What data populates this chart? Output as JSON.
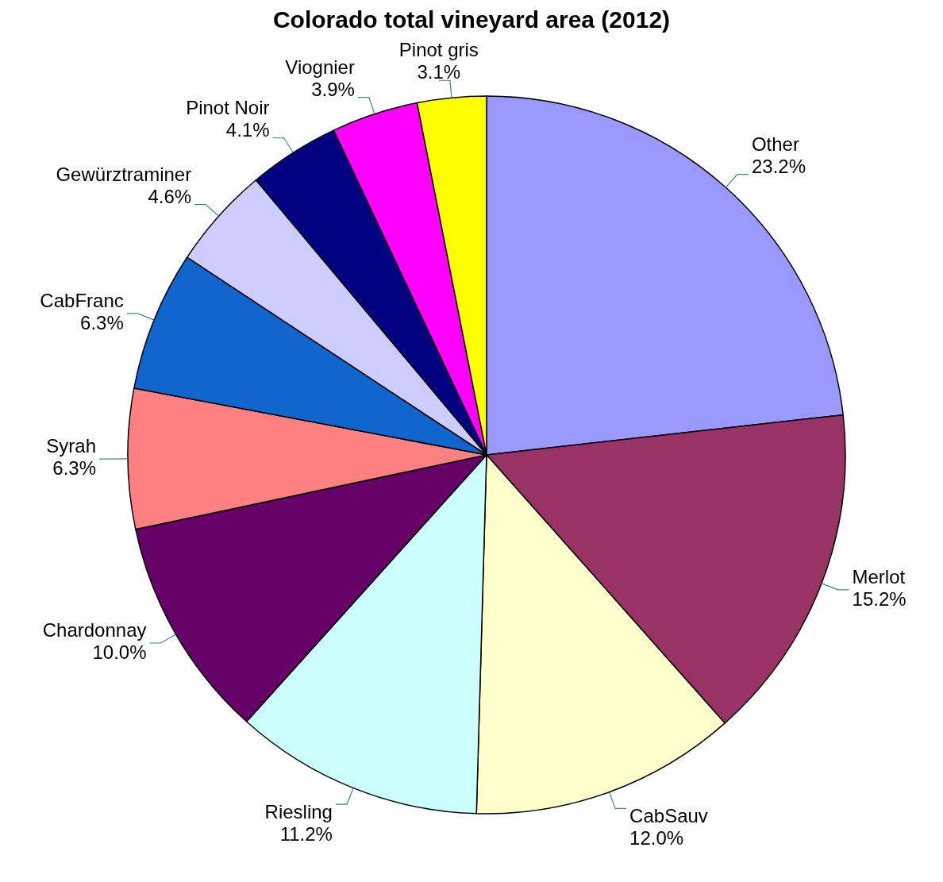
{
  "chart_data": {
    "type": "pie",
    "title": "Colorado total vineyard area (2012)",
    "categories": [
      "Other",
      "Merlot",
      "CabSauv",
      "Riesling",
      "Chardonnay",
      "Syrah",
      "CabFranc",
      "Gewürztraminer",
      "Pinot Noir",
      "Viognier",
      "Pinot gris"
    ],
    "values": [
      23.2,
      15.2,
      12.0,
      11.2,
      10.0,
      6.3,
      6.3,
      4.6,
      4.1,
      3.9,
      3.1
    ],
    "value_labels": [
      "23.2%",
      "15.2%",
      "12.0%",
      "11.2%",
      "10.0%",
      "6.3%",
      "6.3%",
      "4.6%",
      "4.1%",
      "3.9%",
      "3.1%"
    ],
    "colors": [
      "#9999ff",
      "#993366",
      "#ffffcc",
      "#ccffff",
      "#660066",
      "#ff8080",
      "#1066cc",
      "#ccccff",
      "#000080",
      "#ff00ff",
      "#ffff00"
    ],
    "legend": false
  }
}
